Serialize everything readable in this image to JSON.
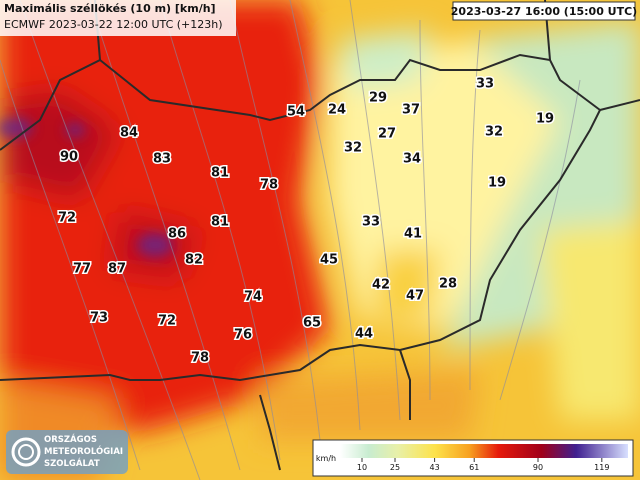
{
  "header": {
    "title": "Maximális széllökés (10 m) [km/h]",
    "subtitle": "ECMWF 2023-03-22 12:00 UTC (+123h)",
    "valid_time": "2023-03-27 16:00 (15:00 UTC)"
  },
  "map_labels": [
    54,
    24,
    29,
    37,
    33,
    84,
    90,
    83,
    27,
    32,
    32,
    19,
    34,
    81,
    78,
    19,
    72,
    81,
    33,
    86,
    41,
    77,
    87,
    82,
    45,
    42,
    28,
    47,
    74,
    73,
    72,
    65,
    76,
    44,
    78
  ],
  "legend": {
    "unit": "km/h",
    "ticks": [
      10,
      25,
      43,
      61,
      90,
      119
    ]
  },
  "logo": {
    "line1": "ORSZÁGOS",
    "line2": "METEOROLÓGIAI",
    "line3": "SZOLGÁLAT"
  }
}
